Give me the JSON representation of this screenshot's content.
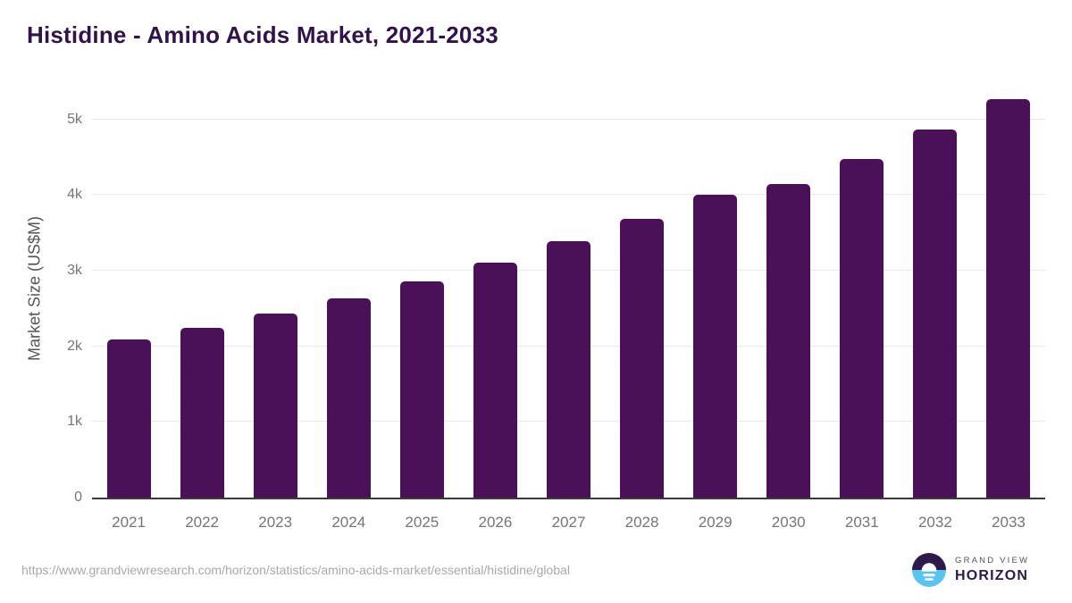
{
  "header": {
    "title": "Histidine - Amino Acids Market, 2021-2033"
  },
  "chart_data": {
    "type": "bar",
    "title": "Histidine - Amino Acids Market, 2021-2033",
    "categories": [
      "2021",
      "2022",
      "2023",
      "2024",
      "2025",
      "2026",
      "2027",
      "2028",
      "2029",
      "2030",
      "2031",
      "2032",
      "2033"
    ],
    "values": [
      2090,
      2250,
      2435,
      2640,
      2860,
      3110,
      3385,
      3685,
      4005,
      4150,
      4480,
      4865,
      5270
    ],
    "xlabel": "",
    "ylabel": "Market Size (US$M)",
    "ylim": [
      0,
      5340
    ],
    "yticks": [
      {
        "value": 0,
        "label": "0"
      },
      {
        "value": 1000,
        "label": "1k"
      },
      {
        "value": 2000,
        "label": "2k"
      },
      {
        "value": 3000,
        "label": "3k"
      },
      {
        "value": 4000,
        "label": "4k"
      },
      {
        "value": 5000,
        "label": "5k"
      }
    ],
    "grid": "horizontal",
    "legend": "none"
  },
  "footer": {
    "source_url": "https://www.grandviewresearch.com/horizon/statistics/amino-acids-market/essential/histidine/global",
    "logo": {
      "line1": "GRAND VIEW",
      "line2": "HORIZON"
    }
  },
  "colors": {
    "background": "#ffffff",
    "title": "#301347",
    "bar": "#4a1158",
    "gridline": "#e9e9e9",
    "axis_line": "#3a3a3a",
    "tick_label": "#757575",
    "axis_title": "#555555",
    "source_url": "#a8a8a8",
    "logo_dark": "#2d1a4a",
    "logo_blue": "#59c4f0",
    "logo_text_gray": "#56515f",
    "logo_horizon_text": "#2e1a47"
  }
}
